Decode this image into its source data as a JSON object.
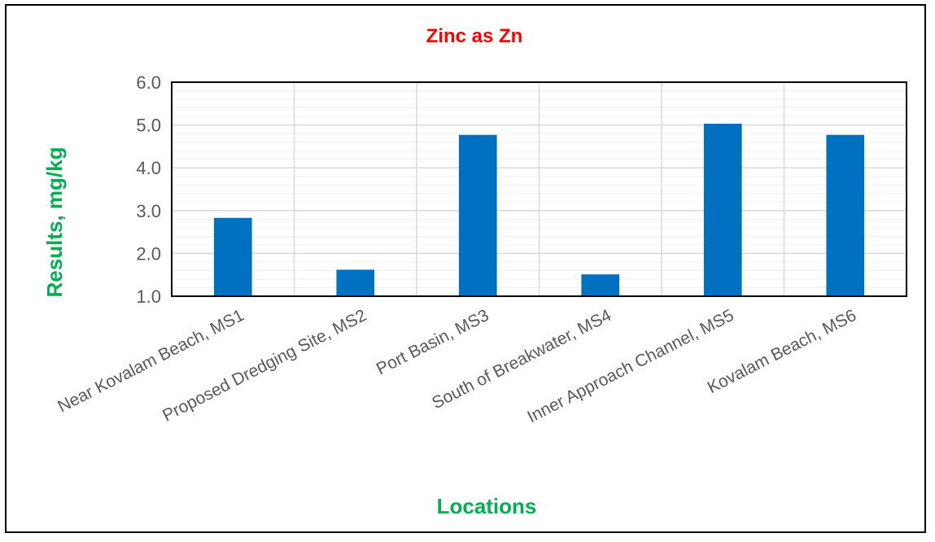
{
  "chart_data": {
    "type": "bar",
    "title": "Zinc as Zn",
    "xlabel": "Locations",
    "ylabel": "Results, mg/kg",
    "categories": [
      "Near Kovalam Beach, MS1",
      "Proposed Dredging Site, MS2",
      "Port Basin, MS3",
      "South of Breakwater, MS4",
      "Inner Approach Channel, MS5",
      "Kovalam Beach, MS6"
    ],
    "values": [
      2.83,
      1.62,
      4.77,
      1.51,
      5.03,
      4.77
    ],
    "ylim": [
      1.0,
      6.0
    ],
    "yticks": [
      "1.0",
      "2.0",
      "3.0",
      "4.0",
      "5.0",
      "6.0"
    ],
    "grid": true,
    "colors": {
      "bar": "#0070C0",
      "title": "#FF0000",
      "axis_title": "#00B050",
      "major_grid": "#D9D9D9",
      "minor_grid": "#F0F0F0",
      "plot_border": "#000000",
      "tick_text": "#595959"
    }
  }
}
